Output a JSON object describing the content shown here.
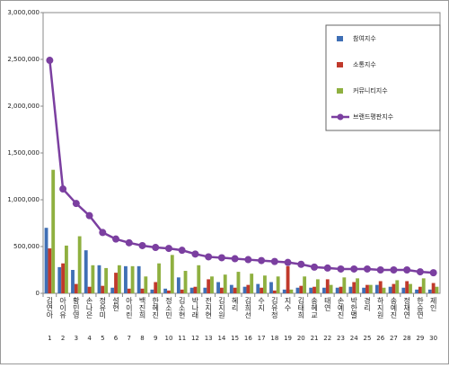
{
  "chart_data": {
    "type": "bar_line",
    "categories": [
      "김연아",
      "아이유",
      "황민영",
      "손나은",
      "정유미",
      "설현",
      "아이린",
      "백진희",
      "한혜진",
      "정소민",
      "김소현",
      "박나래",
      "전지현",
      "김지원",
      "혜리",
      "김희선",
      "수지",
      "김유정",
      "지수",
      "김태희",
      "송혜교",
      "태연",
      "손예진",
      "박한별",
      "경리",
      "하지원",
      "송예진",
      "정채연",
      "한승연",
      "제인"
    ],
    "ranks": [
      1,
      2,
      3,
      4,
      5,
      6,
      7,
      8,
      9,
      10,
      11,
      12,
      13,
      14,
      15,
      16,
      17,
      18,
      19,
      20,
      21,
      22,
      23,
      24,
      25,
      26,
      27,
      28,
      29,
      30
    ],
    "series": [
      {
        "name": "참여지수",
        "color": "#3f6fb5",
        "values": [
          700000,
          280000,
          250000,
          460000,
          300000,
          60000,
          290000,
          290000,
          40000,
          50000,
          170000,
          60000,
          60000,
          120000,
          90000,
          70000,
          100000,
          120000,
          40000,
          60000,
          60000,
          60000,
          60000,
          70000,
          60000,
          90000,
          70000,
          60000,
          40000,
          40000
        ]
      },
      {
        "name": "소통지수",
        "color": "#c0392b",
        "values": [
          480000,
          320000,
          100000,
          70000,
          80000,
          220000,
          50000,
          50000,
          120000,
          30000,
          40000,
          70000,
          150000,
          60000,
          60000,
          90000,
          60000,
          30000,
          290000,
          80000,
          70000,
          150000,
          70000,
          120000,
          90000,
          130000,
          100000,
          130000,
          70000,
          110000
        ]
      },
      {
        "name": "커뮤니티지수",
        "color": "#8fb040",
        "values": [
          1320000,
          510000,
          610000,
          300000,
          270000,
          300000,
          290000,
          180000,
          320000,
          410000,
          240000,
          300000,
          180000,
          200000,
          230000,
          210000,
          190000,
          180000,
          40000,
          180000,
          150000,
          90000,
          170000,
          160000,
          90000,
          60000,
          140000,
          100000,
          160000,
          70000
        ]
      },
      {
        "name": "브랜드평판지수",
        "color": "#7b3fa0",
        "line": true,
        "values": [
          2490000,
          1115000,
          960000,
          830000,
          650000,
          580000,
          540000,
          510000,
          490000,
          480000,
          460000,
          420000,
          390000,
          380000,
          370000,
          360000,
          350000,
          340000,
          330000,
          310000,
          280000,
          270000,
          260000,
          260000,
          260000,
          250000,
          250000,
          250000,
          230000,
          220000
        ]
      }
    ],
    "ylim": [
      0,
      3000000
    ],
    "yticks": [
      {
        "value": 0,
        "label": "0"
      },
      {
        "value": 500000,
        "label": "500,000"
      },
      {
        "value": 1000000,
        "label": "1,000,000"
      },
      {
        "value": 1500000,
        "label": "1,500,000"
      },
      {
        "value": 2000000,
        "label": "2,000,000"
      },
      {
        "value": 2500000,
        "label": "2,500,000"
      },
      {
        "value": 3000000,
        "label": "3,000,000"
      }
    ]
  }
}
